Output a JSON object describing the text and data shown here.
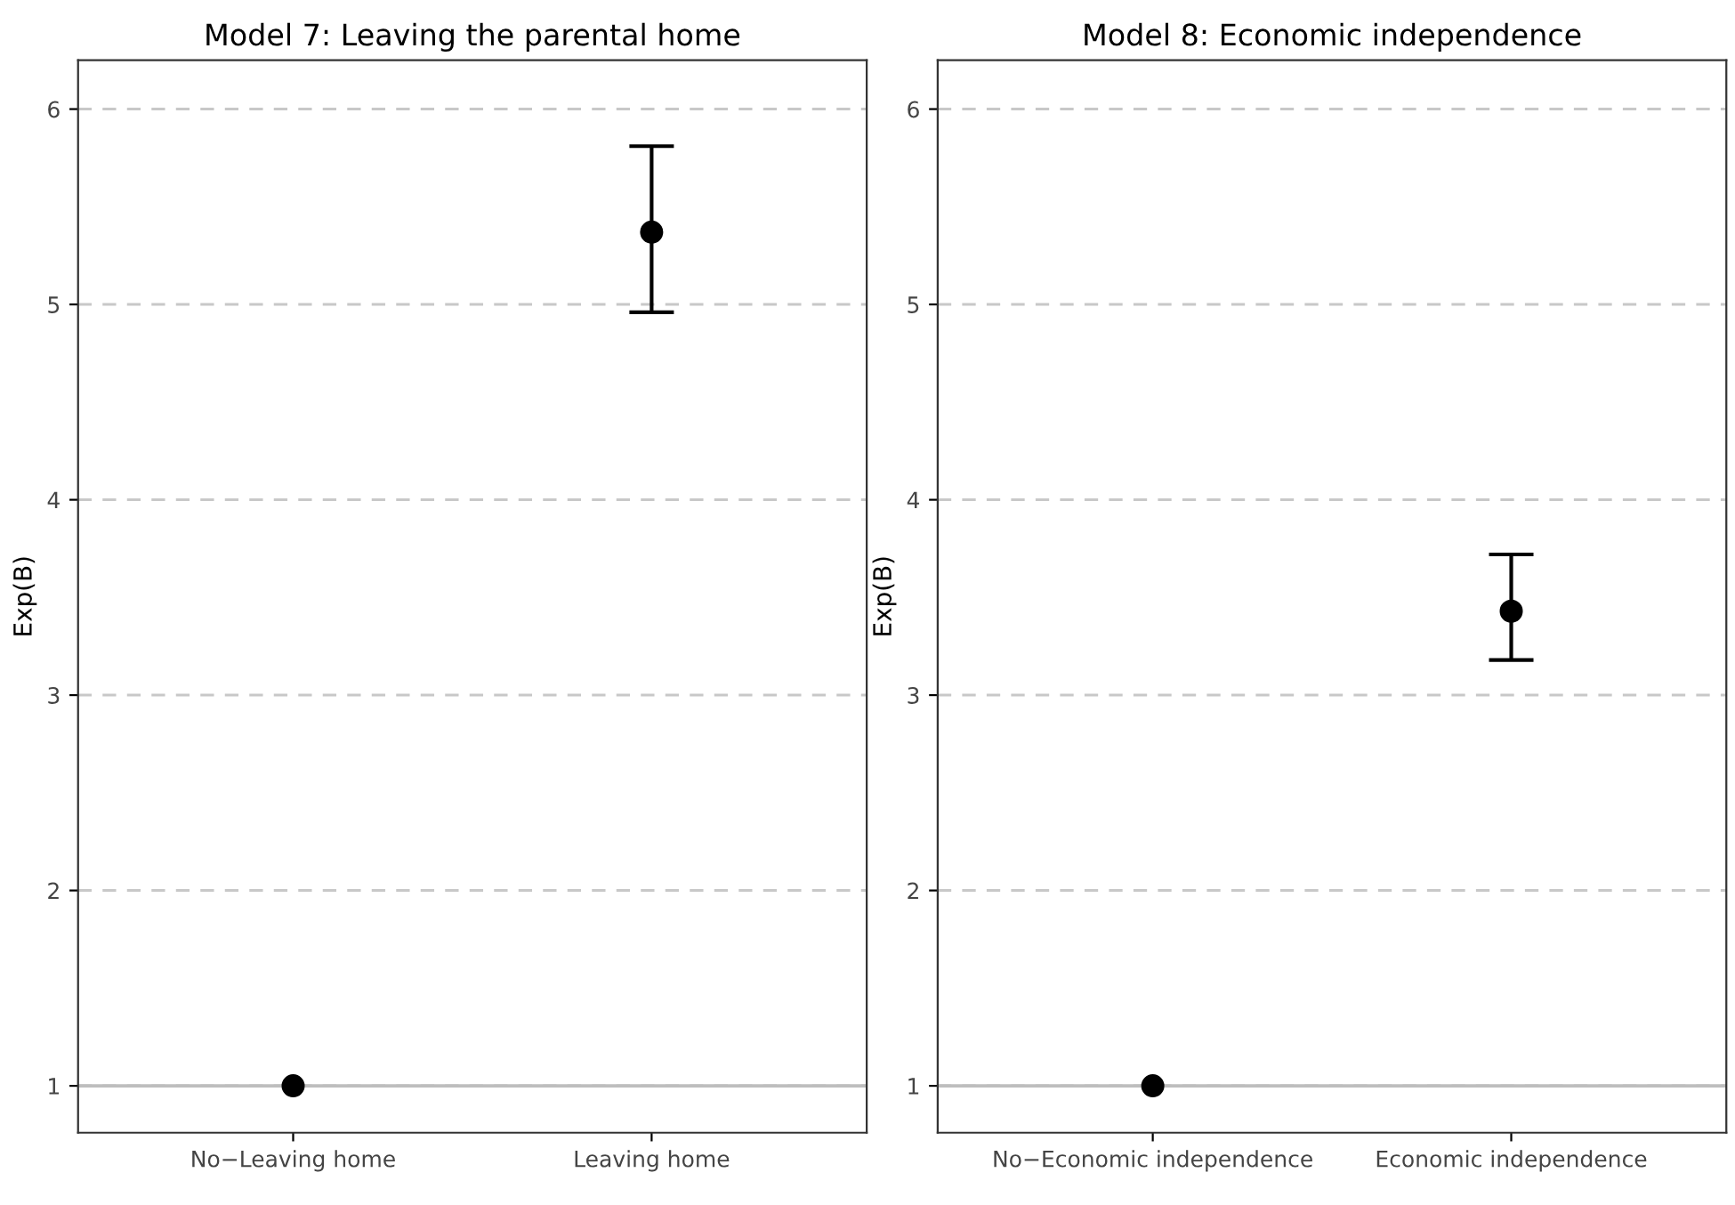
{
  "chart_data": [
    {
      "type": "scatter",
      "title": "Model 7: Leaving the parental home",
      "ylabel": "Exp(B)",
      "categories": [
        "No−Leaving home",
        "Leaving home"
      ],
      "series": [
        {
          "color": "#000000",
          "values": [
            1,
            5.37
          ],
          "errors": [
            null,
            [
              4.96,
              5.81
            ]
          ]
        }
      ],
      "ylim": [
        0.76,
        6.25
      ],
      "yticks": [
        1,
        2,
        3,
        4,
        5,
        6
      ],
      "grid": "y",
      "marker": "circle",
      "legend": false,
      "ref_lines": [
        {
          "axis": "y",
          "value": 1,
          "color": "#bebebe",
          "line_style": "solid"
        }
      ]
    },
    {
      "type": "scatter",
      "title": "Model 8: Economic independence",
      "ylabel": "Exp(B)",
      "categories": [
        "No−Economic independence",
        "Economic independence"
      ],
      "series": [
        {
          "color": "#000000",
          "values": [
            1,
            3.43
          ],
          "errors": [
            null,
            [
              3.18,
              3.72
            ]
          ]
        }
      ],
      "ylim": [
        0.76,
        6.25
      ],
      "yticks": [
        1,
        2,
        3,
        4,
        5,
        6
      ],
      "grid": "y",
      "marker": "circle",
      "legend": false,
      "ref_lines": [
        {
          "axis": "y",
          "value": 1,
          "color": "#bebebe",
          "line_style": "solid"
        }
      ]
    }
  ]
}
